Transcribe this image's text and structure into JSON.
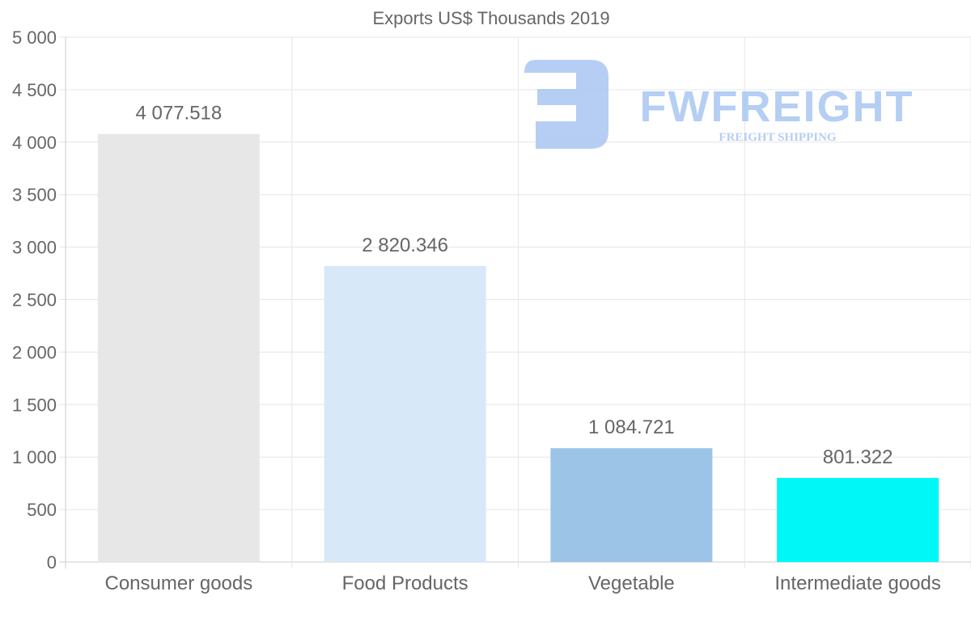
{
  "chart_data": {
    "type": "bar",
    "title": "Exports US$ Thousands 2019",
    "xlabel": "",
    "ylabel": "",
    "ylim": [
      0,
      5000
    ],
    "ytick_step": 500,
    "yticks": [
      "0",
      "500",
      "1 000",
      "1 500",
      "2 000",
      "2 500",
      "3 000",
      "3 500",
      "4 000",
      "4 500",
      "5 000"
    ],
    "grid": true,
    "categories": [
      "Consumer goods",
      "Food Products",
      "Vegetable",
      "Intermediate goods"
    ],
    "values": [
      4077.518,
      2820.346,
      1084.721,
      801.322
    ],
    "value_labels": [
      "4 077.518",
      "2 820.346",
      "1 084.721",
      "801.322"
    ],
    "colors": [
      "#e7e7e7",
      "#d7e8f9",
      "#9cc4e6",
      "#00f7f7"
    ]
  },
  "watermark": {
    "brand": "FWFREIGHT",
    "tagline": "FREIGHT SHIPPING",
    "color": "#a9c6f2"
  }
}
